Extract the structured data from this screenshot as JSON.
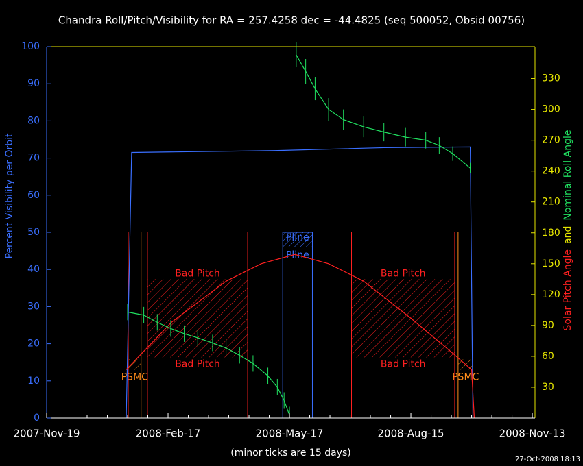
{
  "chart_data": {
    "type": "line",
    "title": "Chandra Roll/Pitch/Visibility for RA = 257.4258 dec = -44.4825 (seq 500052, Obsid 00756)",
    "x_label": "(minor ticks are 15 days)",
    "footer": "27-Oct-2008 18:13",
    "y_label": "Percent Visibility per Orbit",
    "y_label_color": "#3a6fff",
    "y2_label": [
      {
        "text": "Solar Pitch Angle",
        "color": "#ff2020"
      },
      {
        "text": "and",
        "color": "#e6e600"
      },
      {
        "text": "Nominal Roll Angle",
        "color": "#20e060"
      }
    ],
    "xlim": [
      0,
      362
    ],
    "xticks": [
      {
        "value": 0,
        "label": "2007-Nov-19"
      },
      {
        "value": 90,
        "label": "2008-Feb-17"
      },
      {
        "value": 180,
        "label": "2008-May-17"
      },
      {
        "value": 270,
        "label": "2008-Aug-15"
      },
      {
        "value": 360,
        "label": "2008-Nov-13"
      }
    ],
    "ylim": [
      0,
      100
    ],
    "yticks": [
      0,
      10,
      20,
      30,
      40,
      50,
      60,
      70,
      80,
      90,
      100
    ],
    "y2lim": [
      0,
      361
    ],
    "y2ticks": [
      30,
      60,
      90,
      120,
      150,
      180,
      210,
      240,
      270,
      300,
      330
    ],
    "series": [
      {
        "color": "#3a6fff",
        "x": [
          59,
          63,
          169,
          250,
          314,
          316
        ],
        "values": [
          0,
          71.5,
          72,
          72.8,
          73,
          0
        ]
      },
      {
        "color": "#ff2020",
        "axis": "y2",
        "x": [
          59,
          92.5,
          133,
          159,
          184,
          209,
          235,
          270,
          301,
          315,
          317
        ],
        "values": [
          47,
          93,
          133,
          150,
          159,
          150,
          133,
          97,
          63,
          47,
          0
        ]
      },
      {
        "color": "#20e060",
        "axis": "y2",
        "x": [
          60,
          72,
          82,
          92,
          102,
          112,
          123,
          133,
          143,
          153,
          164,
          171,
          176,
          180,
          null,
          185,
          192,
          199,
          209,
          220,
          235,
          250,
          266,
          281,
          291,
          301,
          314
        ],
        "values": [
          103,
          100,
          93,
          87,
          82,
          78,
          73,
          68,
          61,
          53,
          41,
          30,
          17,
          3,
          null,
          353,
          337,
          320,
          300,
          290,
          283,
          278,
          273,
          270,
          265,
          257,
          243
        ],
        "errors": [
          8,
          8,
          8,
          8,
          8,
          8,
          8,
          8,
          8,
          8,
          8,
          8,
          8,
          8,
          null,
          12,
          12,
          11,
          11,
          10,
          10,
          9,
          9,
          8,
          8,
          7,
          5
        ]
      }
    ],
    "regions": [
      {
        "label": "Bad Pitch",
        "x": [
          74.7,
          149
        ],
        "y2": [
          59,
          135
        ],
        "color": "#ff2020"
      },
      {
        "label": "Bad Pitch",
        "x": [
          226,
          302.5
        ],
        "y2": [
          59,
          135
        ],
        "color": "#ff2020"
      },
      {
        "label": "PSMC",
        "x": [
          60.5,
          70
        ],
        "y2": [
          47,
          57
        ],
        "color": "#ff8c1a"
      },
      {
        "label": "PSMC",
        "x": [
          305,
          316
        ],
        "y2": [
          47,
          57
        ],
        "color": "#ff8c1a"
      }
    ],
    "pline": {
      "label": "Pline",
      "x": [
        175,
        197
      ],
      "y": [
        0,
        50
      ],
      "hatch": [
        46,
        50
      ],
      "color": "#3a6fff"
    },
    "vlines": {
      "x": [
        60.5,
        70,
        74.7,
        149,
        226,
        302.5,
        305,
        316
      ],
      "colors": [
        "#ff2020",
        "#ff8c1a",
        "#ff2020",
        "#ff2020",
        "#ff2020",
        "#ff2020",
        "#ff8c1a",
        "#ff2020"
      ],
      "top": 50
    }
  }
}
